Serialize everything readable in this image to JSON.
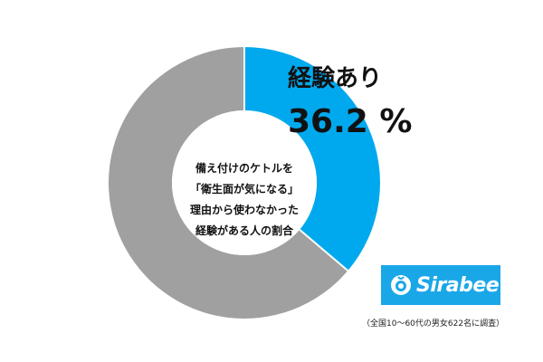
{
  "chart_data": {
    "type": "pie",
    "slices": [
      {
        "label": "経験あり",
        "value": 36.2,
        "display": "36.2 %",
        "color": "#00a9ee"
      },
      {
        "label": "",
        "value": 63.8,
        "color": "#a0a0a0"
      }
    ],
    "center_text": [
      "備え付けのケトルを",
      "「衛生面が気になる」",
      "理由から使わなかった",
      "経験がある人の割合"
    ]
  },
  "brand": {
    "logo_text": "Sirabee",
    "logo_color": "#1aa7e8"
  },
  "footnote": "（全国10～60代の男女622名に調査）"
}
